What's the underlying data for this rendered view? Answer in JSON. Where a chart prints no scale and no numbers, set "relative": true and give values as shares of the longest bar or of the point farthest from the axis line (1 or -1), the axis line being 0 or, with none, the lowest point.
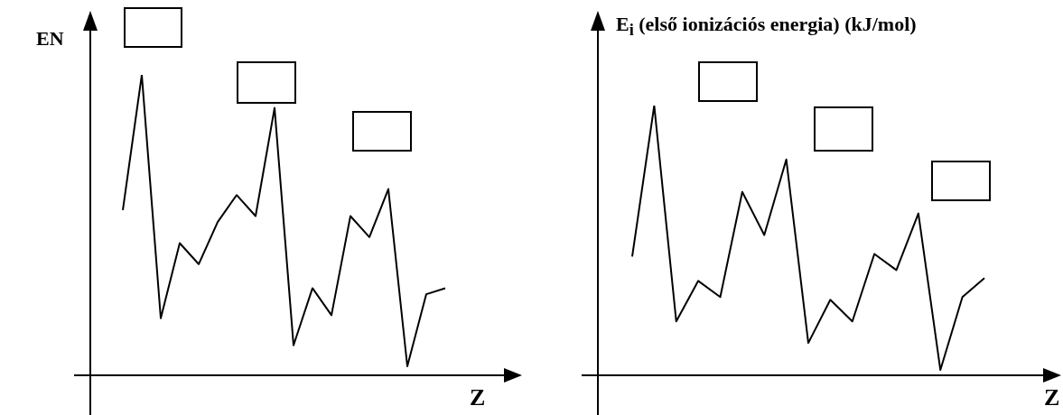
{
  "chart_data": [
    {
      "type": "line",
      "ylabel": "EN",
      "xlabel": "Z",
      "relative": true,
      "legend": false,
      "marker": "none",
      "line_style": "solid",
      "categories": [
        null,
        null,
        null,
        null,
        null,
        null,
        null,
        null,
        null,
        null,
        null,
        null,
        null,
        null,
        null,
        null,
        null,
        null
      ],
      "series": [
        {
          "color": "#000000",
          "values": [
            0.55,
            1.0,
            0.19,
            0.44,
            0.37,
            0.51,
            0.6,
            0.53,
            0.89,
            0.1,
            0.29,
            0.2,
            0.53,
            0.46,
            0.62,
            0.03,
            0.27,
            0.29
          ]
        }
      ]
    },
    {
      "type": "line",
      "ylabel": "E$_{i}$ (első ionizációs energia) (kJ/mol)",
      "xlabel": "Z",
      "relative": true,
      "legend": false,
      "marker": "none",
      "line_style": "solid",
      "categories": [
        null,
        null,
        null,
        null,
        null,
        null,
        null,
        null,
        null,
        null,
        null,
        null,
        null,
        null,
        null,
        null,
        null
      ],
      "series": [
        {
          "color": "#000000",
          "values": [
            0.44,
            1.0,
            0.2,
            0.35,
            0.29,
            0.68,
            0.52,
            0.8,
            0.12,
            0.28,
            0.2,
            0.45,
            0.39,
            0.6,
            0.02,
            0.29,
            0.36
          ]
        }
      ]
    }
  ]
}
